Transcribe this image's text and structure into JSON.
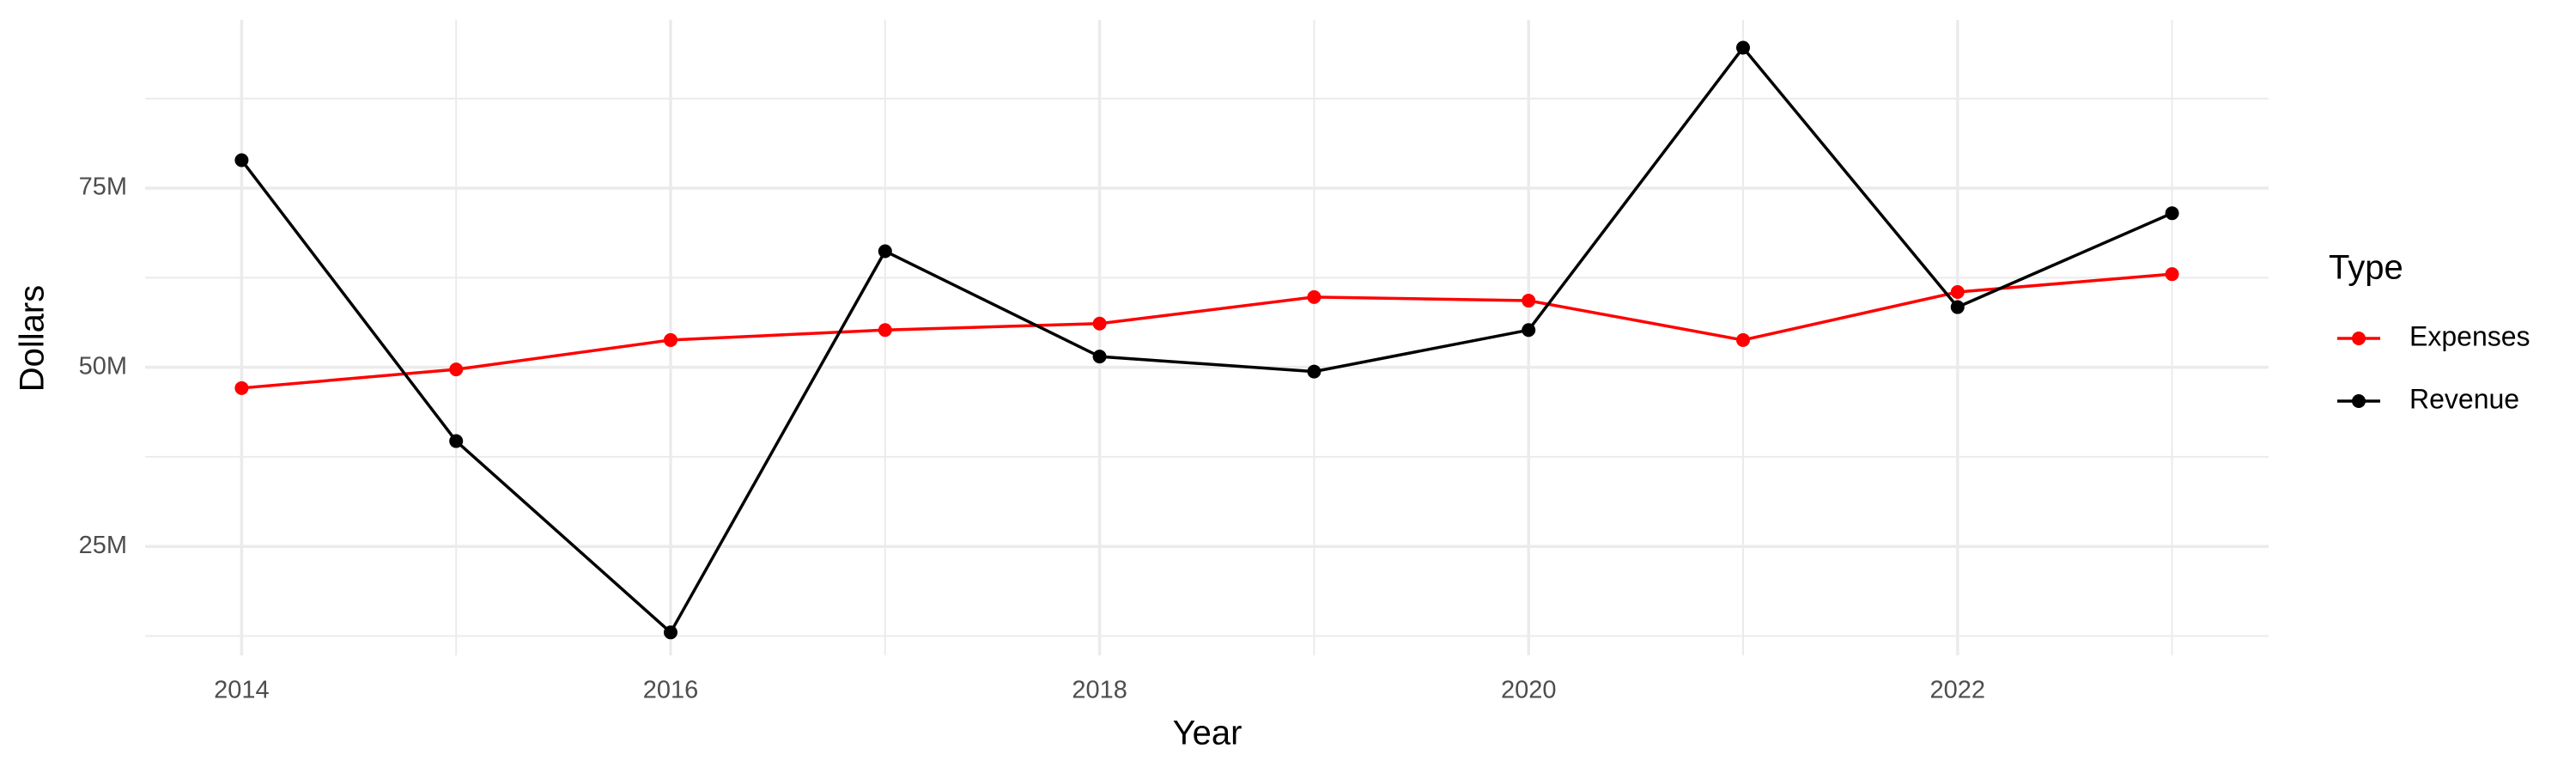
{
  "chart_data": {
    "type": "line",
    "x_label": "Year",
    "y_label": "Dollars",
    "legend_title": "Type",
    "x": [
      2014,
      2015,
      2016,
      2017,
      2018,
      2019,
      2020,
      2021,
      2022,
      2023
    ],
    "series": [
      {
        "name": "Expenses",
        "color": "#ff0000",
        "values": [
          47100000,
          49700000,
          53800000,
          55200000,
          56100000,
          59800000,
          59300000,
          53800000,
          60500000,
          63000000
        ]
      },
      {
        "name": "Revenue",
        "color": "#000000",
        "values": [
          78900000,
          39700000,
          13000000,
          66200000,
          51500000,
          49400000,
          55200000,
          94600000,
          58400000,
          71500000
        ]
      }
    ],
    "xlim": [
      2013.55,
      2023.45
    ],
    "xticks": [
      2014,
      2016,
      2018,
      2020,
      2022
    ],
    "ylim": [
      9800000,
      98500000
    ],
    "yticks": [
      {
        "value": 25000000,
        "label": "25M"
      },
      {
        "value": 50000000,
        "label": "50M"
      },
      {
        "value": 75000000,
        "label": "75M"
      }
    ],
    "grid": true,
    "legend_position": "right"
  }
}
